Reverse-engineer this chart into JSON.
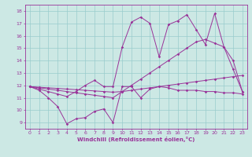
{
  "xlabel": "Windchill (Refroidissement éolien,°C)",
  "xlim": [
    -0.5,
    23.5
  ],
  "ylim": [
    8.5,
    18.5
  ],
  "xticks": [
    0,
    1,
    2,
    3,
    4,
    5,
    6,
    7,
    8,
    9,
    10,
    11,
    12,
    13,
    14,
    15,
    16,
    17,
    18,
    19,
    20,
    21,
    22,
    23
  ],
  "yticks": [
    9,
    10,
    11,
    12,
    13,
    14,
    15,
    16,
    17,
    18
  ],
  "bg_color": "#cce8e4",
  "grid_color": "#99cccc",
  "line_color": "#993399",
  "line1_y": [
    11.9,
    11.6,
    11.0,
    10.3,
    8.9,
    9.3,
    9.4,
    9.9,
    10.1,
    9.0,
    11.9,
    11.9,
    11.0,
    11.7,
    11.9,
    11.8,
    11.6,
    11.6,
    11.6,
    11.5,
    11.5,
    11.4,
    11.4,
    11.3
  ],
  "line2_y": [
    11.9,
    11.85,
    11.8,
    11.75,
    11.7,
    11.65,
    11.6,
    11.55,
    11.5,
    11.45,
    11.5,
    11.6,
    11.7,
    11.8,
    11.9,
    12.0,
    12.1,
    12.2,
    12.3,
    12.4,
    12.5,
    12.6,
    12.7,
    12.8
  ],
  "line3_y": [
    11.9,
    11.7,
    11.5,
    11.3,
    11.1,
    11.5,
    12.0,
    12.4,
    11.9,
    11.9,
    15.1,
    17.1,
    17.5,
    17.0,
    14.3,
    16.9,
    17.2,
    17.7,
    16.5,
    15.3,
    17.8,
    15.1,
    13.3,
    11.5
  ],
  "line4_y": [
    11.9,
    11.8,
    11.7,
    11.6,
    11.5,
    11.4,
    11.3,
    11.2,
    11.1,
    11.0,
    11.5,
    12.0,
    12.5,
    13.0,
    13.5,
    14.0,
    14.5,
    15.0,
    15.5,
    15.7,
    15.4,
    15.1,
    14.0,
    11.5
  ]
}
